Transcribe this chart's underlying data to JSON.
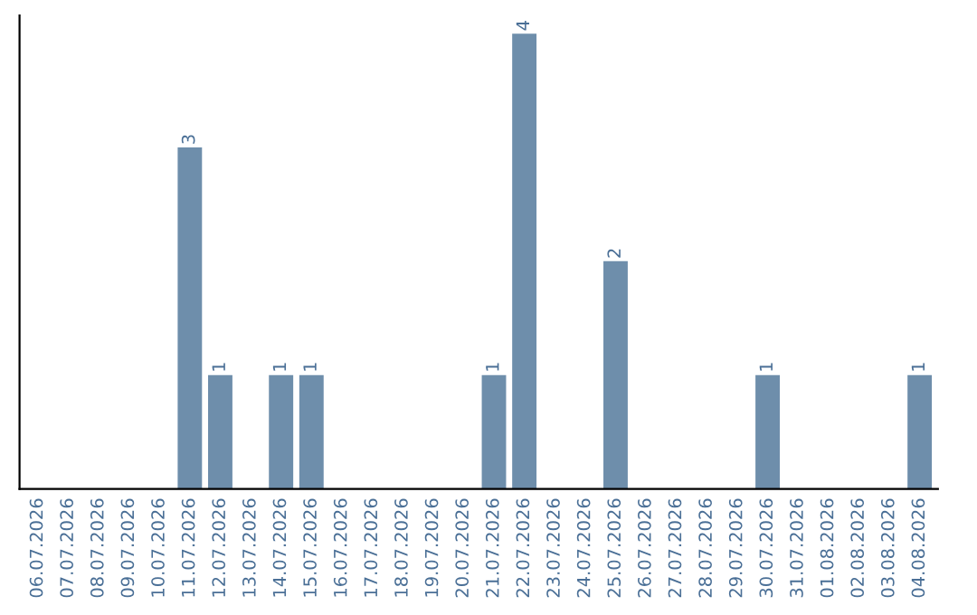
{
  "chart_data": {
    "type": "bar",
    "categories": [
      "06.07.2026",
      "07.07.2026",
      "08.07.2026",
      "09.07.2026",
      "10.07.2026",
      "11.07.2026",
      "12.07.2026",
      "13.07.2026",
      "14.07.2026",
      "15.07.2026",
      "16.07.2026",
      "17.07.2026",
      "18.07.2026",
      "19.07.2026",
      "20.07.2026",
      "21.07.2026",
      "22.07.2026",
      "23.07.2026",
      "24.07.2026",
      "25.07.2026",
      "26.07.2026",
      "27.07.2026",
      "28.07.2026",
      "29.07.2026",
      "30.07.2026",
      "31.07.2026",
      "01.08.2026",
      "02.08.2026",
      "03.08.2026",
      "04.08.2026"
    ],
    "values": [
      0,
      0,
      0,
      0,
      0,
      3,
      1,
      0,
      1,
      1,
      0,
      0,
      0,
      0,
      0,
      1,
      4,
      0,
      0,
      2,
      0,
      0,
      0,
      0,
      1,
      0,
      0,
      0,
      0,
      1
    ],
    "value_labels": [
      null,
      null,
      null,
      null,
      null,
      "3",
      "1",
      null,
      "1",
      "1",
      null,
      null,
      null,
      null,
      null,
      "1",
      "4",
      null,
      null,
      "2",
      null,
      null,
      null,
      null,
      "1",
      null,
      null,
      null,
      null,
      "1"
    ],
    "color": "#6e8eab",
    "tick_labels": "x",
    "grid": false,
    "legend": false
  }
}
